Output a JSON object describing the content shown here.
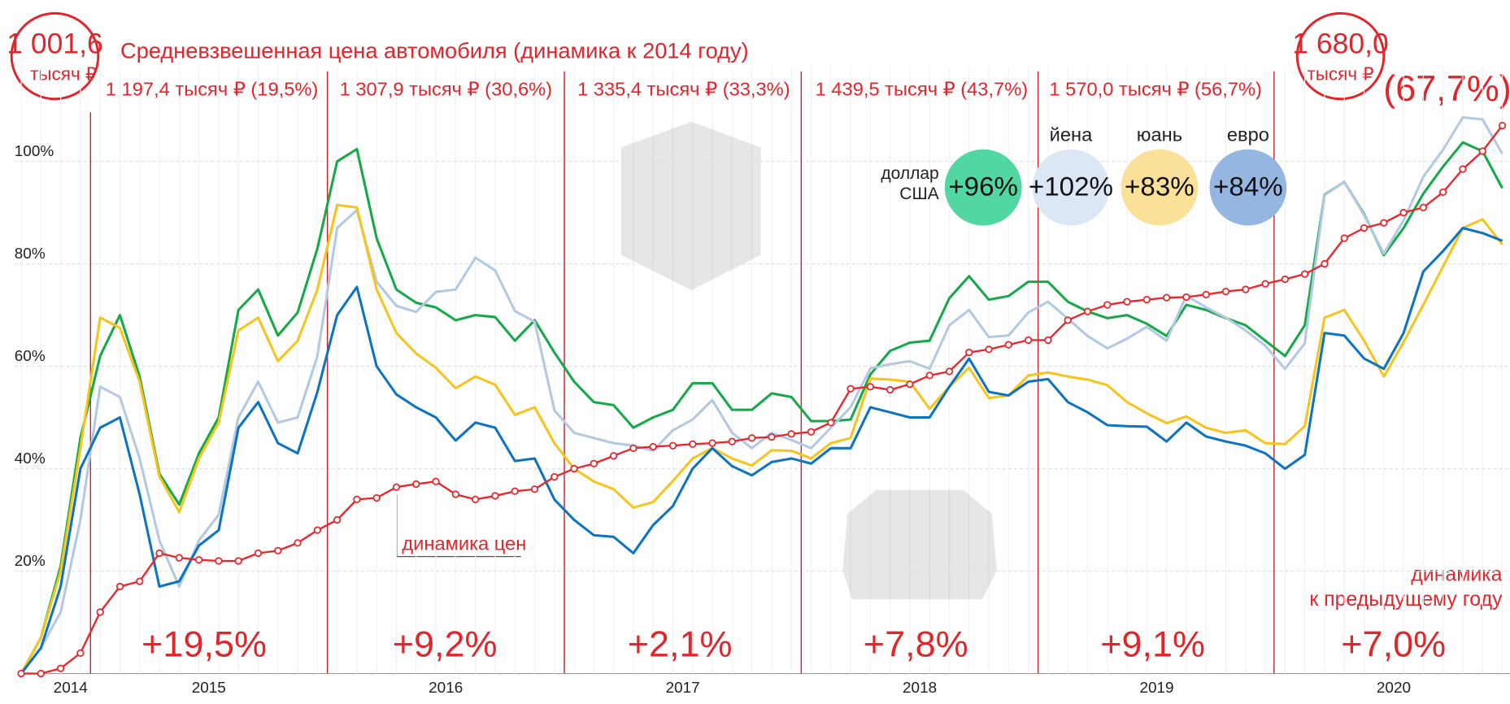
{
  "chart_data": {
    "type": "line",
    "title": "Средневзвешенная цена автомобиля (динамика к 2014 году)",
    "start_value": {
      "value": "1 001,6",
      "unit": "тысяч ₽"
    },
    "end_value": {
      "value": "1 680,0",
      "unit": "тысяч ₽",
      "change": "(67,7%)"
    },
    "period_labels": [
      "1 197,4 тысяч ₽ (19,5%)",
      "1 307,9 тысяч ₽ (30,6%)",
      "1 335,4 тысяч ₽ (33,3%)",
      "1 439,5 тысяч ₽ (43,7%)",
      "1 570,0 тысяч ₽ (56,7%)"
    ],
    "period_changes": [
      "+19,5%",
      "+9,2%",
      "+2,1%",
      "+7,8%",
      "+9,1%",
      "+7,0%"
    ],
    "period_changes_note": [
      "динамика",
      "к предыдущему году"
    ],
    "categories": [
      null,
      null,
      null,
      "2014",
      null,
      null,
      null,
      null,
      null,
      null,
      "2015",
      null,
      null,
      null,
      null,
      null,
      null,
      null,
      null,
      null,
      null,
      null,
      "2016",
      null,
      null,
      null,
      null,
      null,
      null,
      null,
      null,
      null,
      null,
      null,
      "2017",
      null,
      null,
      null,
      null,
      null,
      null,
      null,
      null,
      null,
      null,
      null,
      "2018",
      null,
      null,
      null,
      null,
      null,
      null,
      null,
      null,
      null,
      null,
      null,
      "2019",
      null,
      null,
      null,
      null,
      null,
      null,
      null,
      null,
      null,
      null,
      null,
      "2020",
      null,
      null,
      null,
      null,
      null
    ],
    "ylim": [
      0,
      120
    ],
    "yticks": [
      {
        "value": 20,
        "label": "20%"
      },
      {
        "value": 40,
        "label": "40%"
      },
      {
        "value": 60,
        "label": "60%"
      },
      {
        "value": 80,
        "label": "80%"
      },
      {
        "value": 100,
        "label": "100%"
      }
    ],
    "grid": true,
    "series": [
      {
        "name": "динамика цен",
        "color": "#e8262b",
        "markers": true,
        "values": [
          0,
          0,
          1,
          4,
          12,
          17,
          18,
          23.5,
          22.6,
          22.2,
          22,
          22,
          23.5,
          24,
          25.5,
          28,
          30,
          34,
          34.3,
          36.4,
          37,
          37.5,
          35,
          34,
          34.7,
          35.6,
          36,
          38.4,
          40,
          41,
          42.5,
          44,
          44.3,
          44.5,
          44.8,
          45,
          45.3,
          46,
          46.2,
          46.8,
          47.2,
          49,
          55.6,
          56,
          55.4,
          56.5,
          58.2,
          59,
          62.7,
          63.3,
          64.2,
          65.1,
          65.1,
          69,
          70.7,
          72,
          72.6,
          73,
          73.4,
          73.5,
          74,
          74.6,
          75,
          76.1,
          77,
          78,
          80,
          85,
          87,
          88,
          90,
          91,
          94,
          98.5,
          102,
          107
        ]
      },
      {
        "name": "доллар США",
        "color": "#17a84a",
        "badge": "#52d6a2",
        "change": "+96%",
        "values": [
          0,
          7,
          21,
          46,
          62,
          70,
          58,
          39,
          33,
          43,
          50,
          71,
          75,
          66,
          70.5,
          83,
          100,
          102.4,
          85,
          75,
          72.4,
          71.5,
          69,
          70,
          69.6,
          65,
          69,
          62.7,
          57,
          53,
          52.4,
          48,
          50,
          51.5,
          56.7,
          56.7,
          51.5,
          51.5,
          54.7,
          54,
          49.3,
          49.3,
          49.6,
          58.4,
          63,
          64.6,
          65,
          73.3,
          77.6,
          73,
          73.7,
          76.5,
          76.5,
          72.6,
          70.7,
          69.4,
          70,
          68.3,
          65.9,
          72,
          71,
          69.4,
          68,
          65,
          62,
          68,
          93.5,
          96,
          89.7,
          81.7,
          87,
          93.7,
          99,
          103.7,
          102,
          94.8
        ]
      },
      {
        "name": "йена",
        "color": "#b3c9e3",
        "badge": "#dce7f5",
        "change": "+102%",
        "values": [
          0,
          5,
          12,
          30,
          56,
          54,
          42,
          26,
          17,
          26,
          31,
          50,
          57,
          49,
          50,
          62,
          87,
          90.5,
          76.5,
          71.8,
          70.6,
          74.5,
          75,
          81.2,
          78.7,
          70.8,
          68.7,
          51.4,
          47,
          46,
          45,
          44.5,
          43.5,
          47.5,
          49.6,
          53.4,
          47,
          44,
          47,
          45.6,
          44,
          48,
          52,
          59.6,
          60.4,
          61,
          59.5,
          68,
          71,
          65.7,
          66,
          70.5,
          72.6,
          69.3,
          65.9,
          63.5,
          65.4,
          67.7,
          65,
          73.8,
          71.5,
          69.5,
          67,
          64,
          59.5,
          64.5,
          93.4,
          96,
          89.5,
          82,
          88.5,
          97,
          102.3,
          108.6,
          108.2,
          101.5
        ]
      },
      {
        "name": "юань",
        "color": "#f6c41c",
        "badge": "#fbe09a",
        "change": "+83%",
        "values": [
          0,
          7,
          20,
          44,
          69.5,
          67.5,
          57,
          38.5,
          31.5,
          42,
          49,
          67,
          69.5,
          61,
          65,
          75,
          91.5,
          91,
          75,
          66.5,
          62.5,
          59.7,
          55.7,
          58,
          56.4,
          50.5,
          52,
          45,
          40,
          37.5,
          36,
          32.4,
          33.5,
          37.6,
          42,
          44,
          42,
          40.6,
          43.6,
          43.5,
          42,
          45,
          46,
          57.6,
          57.4,
          57,
          51.7,
          56,
          59.7,
          53.8,
          54.3,
          58.2,
          58.8,
          58,
          57.4,
          56.3,
          53,
          50.8,
          48.9,
          50.2,
          48,
          47,
          47.5,
          45,
          44.8,
          48.3,
          69.5,
          71,
          65,
          58,
          64.7,
          72,
          79.5,
          87,
          88.7,
          83.8
        ]
      },
      {
        "name": "евро",
        "color": "#0e73c0",
        "badge": "#95b6e1",
        "change": "+84%",
        "values": [
          0,
          5,
          17,
          40,
          48,
          50,
          35,
          17,
          18,
          25,
          28,
          48,
          53,
          45,
          43,
          55,
          70,
          75.5,
          60,
          54.5,
          52,
          50,
          45.5,
          49,
          48,
          41.5,
          42,
          34,
          30,
          27,
          26.7,
          23.5,
          29,
          32.7,
          40,
          44,
          40.5,
          38.7,
          41.3,
          42,
          41,
          44,
          44,
          52,
          51,
          50,
          50,
          56,
          61.5,
          55,
          54.3,
          57,
          57.5,
          53,
          51,
          48.5,
          48.3,
          48.2,
          45.3,
          49,
          46.3,
          45.3,
          44.5,
          43,
          40,
          42.7,
          66.5,
          66,
          61.5,
          59.5,
          66.5,
          78.5,
          82.5,
          87,
          86,
          84.5
        ]
      }
    ]
  }
}
